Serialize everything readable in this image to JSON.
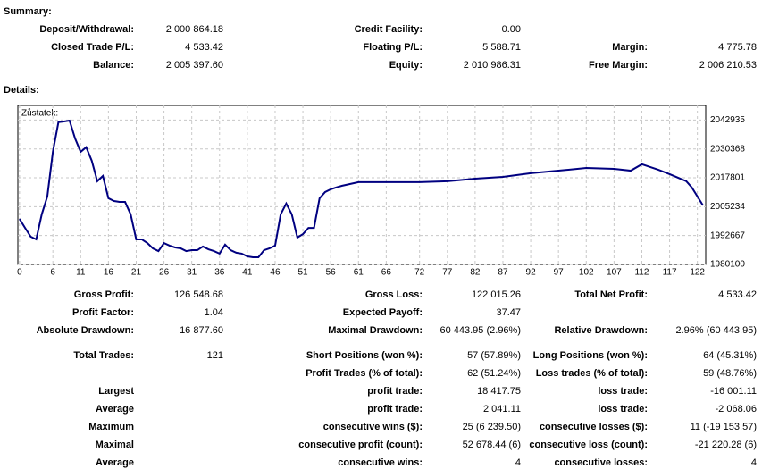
{
  "summary": {
    "title": "Summary:",
    "rows": [
      [
        "Deposit/Withdrawal:",
        "2 000 864.18",
        "Credit Facility:",
        "0.00",
        null,
        null
      ],
      [
        "Closed Trade P/L:",
        "4 533.42",
        "Floating P/L:",
        "5 588.71",
        "Margin:",
        "4 775.78"
      ],
      [
        "Balance:",
        "2 005 397.60",
        "Equity:",
        "2 010 986.31",
        "Free Margin:",
        "2 006 210.53"
      ]
    ]
  },
  "details": {
    "title": "Details:",
    "rows": [
      [
        "Gross Profit:",
        "126 548.68",
        "Gross Loss:",
        "122 015.26",
        "Total Net Profit:",
        "4 533.42"
      ],
      [
        "Profit Factor:",
        "1.04",
        "Expected Payoff:",
        "37.47",
        null,
        null
      ],
      [
        "Absolute Drawdown:",
        "16 877.60",
        "Maximal Drawdown:",
        "60 443.95 (2.96%)",
        "Relative Drawdown:",
        "2.96% (60 443.95)"
      ],
      [
        "Total Trades:",
        "121",
        "Short Positions (won %):",
        "57 (57.89%)",
        "Long Positions (won %):",
        "64 (45.31%)"
      ],
      [
        null,
        null,
        "Profit Trades (% of total):",
        "62 (51.24%)",
        "Loss trades (% of total):",
        "59 (48.76%)"
      ],
      [
        "Largest",
        null,
        "profit trade:",
        "18 417.75",
        "loss trade:",
        "-16 001.11"
      ],
      [
        "Average",
        null,
        "profit trade:",
        "2 041.11",
        "loss trade:",
        "-2 068.06"
      ],
      [
        "Maximum",
        null,
        "consecutive wins ($):",
        "25 (6 239.50)",
        "consecutive losses ($):",
        "11 (-19 153.57)"
      ],
      [
        "Maximal",
        null,
        "consecutive profit (count):",
        "52 678.44 (6)",
        "consecutive loss (count):",
        "-21 220.28 (6)"
      ],
      [
        "Average",
        null,
        "consecutive wins:",
        "4",
        "consecutive losses:",
        "4"
      ]
    ]
  },
  "chart": {
    "type": "line",
    "label": "Zůstatek:",
    "color": "#000080",
    "grid": true,
    "x": [
      0,
      1,
      2,
      3,
      4,
      5,
      6,
      7,
      8,
      9,
      10,
      11,
      12,
      13,
      14,
      15,
      16,
      17,
      18,
      19,
      20,
      21,
      22,
      23,
      24,
      25,
      26,
      27,
      28,
      29,
      30,
      31,
      32,
      33,
      34,
      35,
      36,
      37,
      38,
      39,
      40,
      41,
      42,
      43,
      44,
      45,
      46,
      47,
      48,
      49,
      50,
      51,
      52,
      53,
      54,
      55,
      56,
      57,
      58,
      61,
      66,
      72,
      77,
      82,
      87,
      92,
      97,
      102,
      107,
      110,
      112,
      115,
      117,
      120,
      121,
      123
    ],
    "values": [
      1999900,
      1996000,
      1992200,
      1991000,
      2001900,
      2009700,
      2029100,
      2042000,
      2042300,
      2042700,
      2034900,
      2029100,
      2031100,
      2025200,
      2016300,
      2018600,
      2008900,
      2007700,
      2007300,
      2007300,
      2001900,
      1991000,
      1991000,
      1989400,
      1987100,
      1985900,
      1989400,
      1988300,
      1987500,
      1987100,
      1985900,
      1986300,
      1986300,
      1987900,
      1986700,
      1985900,
      1984800,
      1988700,
      1986300,
      1985200,
      1984800,
      1983600,
      1983200,
      1983200,
      1986300,
      1987100,
      1988300,
      2001900,
      2006600,
      2001900,
      1991800,
      1993300,
      1996000,
      1996000,
      2008900,
      2011600,
      2012800,
      2013600,
      2014300,
      2015900,
      2015900,
      2015900,
      2016300,
      2017400,
      2018200,
      2019800,
      2020900,
      2022100,
      2021700,
      2020900,
      2023700,
      2021300,
      2019400,
      2016300,
      2013600,
      2005800
    ],
    "xlim": [
      -0.3,
      123.5
    ],
    "ylim": [
      1980100,
      2049300
    ],
    "xticks": [
      0,
      6,
      11,
      16,
      21,
      26,
      31,
      36,
      41,
      46,
      51,
      56,
      61,
      66,
      72,
      77,
      82,
      87,
      92,
      97,
      102,
      107,
      112,
      117,
      122
    ],
    "yticks": [
      1980100,
      1992667,
      2005234,
      2017801,
      2030368,
      2042935
    ]
  }
}
